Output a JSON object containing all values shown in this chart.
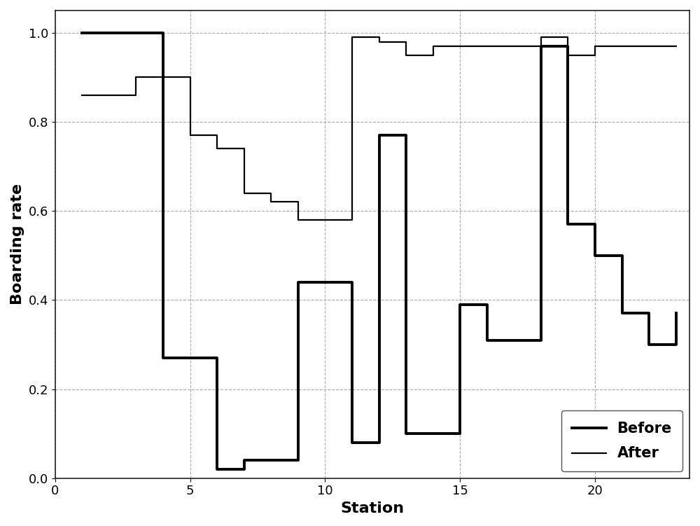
{
  "before_x": [
    1,
    2,
    3,
    4,
    5,
    6,
    7,
    8,
    9,
    10,
    11,
    12,
    13,
    14,
    15,
    16,
    17,
    18,
    19,
    20,
    21,
    22,
    23
  ],
  "before_y": [
    1.0,
    1.0,
    1.0,
    0.27,
    0.27,
    0.02,
    0.04,
    0.04,
    0.44,
    0.44,
    0.08,
    0.77,
    0.1,
    0.1,
    0.39,
    0.31,
    0.31,
    0.97,
    0.57,
    0.5,
    0.37,
    0.3,
    0.37
  ],
  "after_x": [
    1,
    2,
    3,
    4,
    5,
    6,
    7,
    8,
    9,
    10,
    11,
    12,
    13,
    14,
    15,
    16,
    17,
    18,
    19,
    20,
    21,
    22,
    23
  ],
  "after_y": [
    0.86,
    0.86,
    0.9,
    0.9,
    0.77,
    0.74,
    0.64,
    0.62,
    0.58,
    0.58,
    0.99,
    0.98,
    0.95,
    0.97,
    0.97,
    0.97,
    0.97,
    0.99,
    0.95,
    0.97,
    0.97,
    0.97,
    0.97
  ],
  "xlabel": "Station",
  "ylabel": "Boarding rate",
  "xlim_lo": 0.5,
  "xlim_hi": 23.5,
  "ylim_lo": 0.0,
  "ylim_hi": 1.05,
  "xticks": [
    0,
    5,
    10,
    15,
    20
  ],
  "yticks": [
    0.0,
    0.2,
    0.4,
    0.6,
    0.8,
    1.0
  ],
  "before_color": "#000000",
  "after_color": "#000000",
  "before_lw": 2.8,
  "after_lw": 1.6,
  "legend_labels": [
    "Before",
    "After"
  ],
  "legend_loc": "lower right",
  "grid_color": "#aaaaaa",
  "grid_ls": "--",
  "bg_color": "#ffffff"
}
